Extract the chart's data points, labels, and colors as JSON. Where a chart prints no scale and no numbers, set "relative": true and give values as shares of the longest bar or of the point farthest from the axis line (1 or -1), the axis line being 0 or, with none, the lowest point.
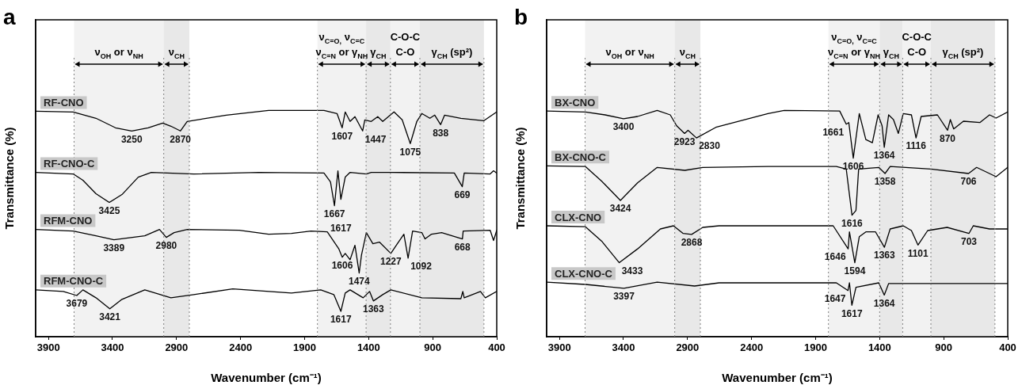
{
  "chart_data": [
    {
      "type": "line",
      "title": "a",
      "xlabel": "Wavenumber (cm⁻¹)",
      "ylabel": "Transmittance (%)",
      "relative": true,
      "xlim": [
        4000,
        400
      ],
      "xticks": [
        3900,
        3400,
        2900,
        2400,
        1900,
        1400,
        900,
        400
      ],
      "marker": "none",
      "grid": false,
      "legend": false,
      "series": [
        {
          "name": "RF-CNO",
          "color": "#000000",
          "x": [
            4000,
            3707,
            3529,
            3377,
            3250,
            3122,
            3008,
            2944,
            2870,
            2817,
            2512,
            2181,
            1749,
            1647,
            1607,
            1583,
            1545,
            1507,
            1447,
            1430,
            1380,
            1329,
            1290,
            1202,
            1138,
            1075,
            1024,
            985,
            922,
            884,
            838,
            807,
            680,
            502,
            400
          ],
          "values": [
            0.996,
            0.993,
            0.965,
            0.923,
            0.909,
            0.923,
            0.944,
            0.93,
            0.909,
            0.951,
            0.979,
            1.0,
            1.0,
            0.986,
            0.923,
            0.993,
            0.951,
            0.972,
            0.909,
            0.958,
            0.951,
            0.972,
            0.951,
            0.993,
            0.958,
            0.853,
            0.951,
            0.986,
            0.965,
            0.979,
            0.937,
            0.979,
            0.965,
            0.954,
            0.993
          ]
        },
        {
          "name": "RF-CNO-C",
          "color": "#000000",
          "x": [
            4000,
            3707,
            3631,
            3529,
            3425,
            3326,
            3199,
            3097,
            2766,
            2257,
            1749,
            1698,
            1667,
            1640,
            1617,
            1583,
            1545,
            1418,
            1380,
            1240,
            731,
            669,
            654,
            451,
            425,
            400
          ],
          "values": [
            0.726,
            0.719,
            0.691,
            0.632,
            0.593,
            0.628,
            0.705,
            0.726,
            0.719,
            0.726,
            0.723,
            0.684,
            0.579,
            0.733,
            0.607,
            0.705,
            0.726,
            0.719,
            0.726,
            0.726,
            0.723,
            0.663,
            0.723,
            0.719,
            0.733,
            0.723
          ]
        },
        {
          "name": "RFM-CNO",
          "color": "#000000",
          "x": [
            4000,
            3707,
            3529,
            3389,
            3148,
            3033,
            2980,
            2919,
            2817,
            2410,
            2181,
            2003,
            1850,
            1723,
            1634,
            1606,
            1583,
            1545,
            1507,
            1474,
            1456,
            1418,
            1367,
            1316,
            1227,
            1176,
            1125,
            1092,
            1057,
            985,
            960,
            909,
            830,
            668,
            662,
            451,
            425,
            400
          ],
          "values": [
            0.474,
            0.467,
            0.446,
            0.428,
            0.446,
            0.474,
            0.439,
            0.46,
            0.474,
            0.47,
            0.453,
            0.456,
            0.467,
            0.463,
            0.389,
            0.351,
            0.368,
            0.34,
            0.404,
            0.281,
            0.361,
            0.46,
            0.411,
            0.418,
            0.368,
            0.411,
            0.453,
            0.347,
            0.467,
            0.46,
            0.432,
            0.453,
            0.46,
            0.432,
            0.467,
            0.47,
            0.425,
            0.47
          ]
        },
        {
          "name": "RFM-CNO-C",
          "color": "#000000",
          "x": [
            4000,
            3784,
            3679,
            3631,
            3529,
            3421,
            3326,
            3148,
            2944,
            2766,
            2461,
            2003,
            1774,
            1672,
            1617,
            1583,
            1545,
            1443,
            1393,
            1363,
            1290,
            1227,
            985,
            680,
            665,
            654,
            527,
            489,
            400
          ],
          "values": [
            0.207,
            0.2,
            0.182,
            0.207,
            0.172,
            0.123,
            0.165,
            0.207,
            0.172,
            0.186,
            0.211,
            0.193,
            0.207,
            0.186,
            0.112,
            0.193,
            0.207,
            0.172,
            0.2,
            0.158,
            0.186,
            0.207,
            0.172,
            0.168,
            0.2,
            0.172,
            0.2,
            0.172,
            0.2
          ]
        }
      ],
      "ref_lines": [
        {
          "axis": "x",
          "value": 3700,
          "color": "#808080",
          "line_style": "dotted"
        },
        {
          "axis": "x",
          "value": 3000,
          "color": "#808080",
          "line_style": "dotted"
        },
        {
          "axis": "x",
          "value": 2800,
          "color": "#808080",
          "line_style": "dotted"
        },
        {
          "axis": "x",
          "value": 1800,
          "color": "#808080",
          "line_style": "dotted"
        },
        {
          "axis": "x",
          "value": 1420,
          "color": "#808080",
          "line_style": "dotted"
        },
        {
          "axis": "x",
          "value": 1230,
          "color": "#808080",
          "line_style": "dotted"
        },
        {
          "axis": "x",
          "value": 1000,
          "color": "#808080",
          "line_style": "dotted"
        },
        {
          "axis": "x",
          "value": 500,
          "color": "#808080",
          "line_style": "dotted"
        }
      ],
      "bands": [
        {
          "axis": "x",
          "from": 3700,
          "to": 3000,
          "label": "ν$_{OH}$ or ν$_{NH}$",
          "color": "#f2f2f2"
        },
        {
          "axis": "x",
          "from": 3000,
          "to": 2800,
          "label": "ν$_{CH}$",
          "color": "#e8e8e8"
        },
        {
          "axis": "x",
          "from": 1800,
          "to": 1420,
          "label": "ν$_{C=O,}$ ν$_{C=C}$\nν$_{C=N}$ or γ$_{NH}$",
          "color": "#f2f2f2"
        },
        {
          "axis": "x",
          "from": 1420,
          "to": 1230,
          "label": "γ$_{CH}$",
          "color": "#e8e8e8"
        },
        {
          "axis": "x",
          "from": 1230,
          "to": 1000,
          "label": "C-O-C\nC-O",
          "color": "#f2f2f2"
        },
        {
          "axis": "x",
          "from": 1000,
          "to": 500,
          "label": "γ$_{CH}$ (sp²)",
          "color": "#e8e8e8"
        }
      ],
      "annotations": [
        {
          "text": "3250",
          "x": 3250,
          "y": 0.909
        },
        {
          "text": "2870",
          "x": 2870,
          "y": 0.909
        },
        {
          "text": "1607",
          "x": 1607,
          "y": 0.923
        },
        {
          "text": "1447",
          "x": 1447,
          "y": 0.909
        },
        {
          "text": "1075",
          "x": 1075,
          "y": 0.853
        },
        {
          "text": "838",
          "x": 838,
          "y": 0.937
        },
        {
          "text": "3425",
          "x": 3425,
          "y": 0.593
        },
        {
          "text": "1667",
          "x": 1667,
          "y": 0.579
        },
        {
          "text": "1617",
          "x": 1617,
          "y": 0.607
        },
        {
          "text": "669",
          "x": 669,
          "y": 0.663
        },
        {
          "text": "3389",
          "x": 3389,
          "y": 0.428
        },
        {
          "text": "2980",
          "x": 2980,
          "y": 0.439
        },
        {
          "text": "1606",
          "x": 1606,
          "y": 0.351
        },
        {
          "text": "1474",
          "x": 1474,
          "y": 0.281
        },
        {
          "text": "1227",
          "x": 1227,
          "y": 0.368
        },
        {
          "text": "1092",
          "x": 1092,
          "y": 0.347
        },
        {
          "text": "668",
          "x": 668,
          "y": 0.432
        },
        {
          "text": "3679",
          "x": 3679,
          "y": 0.182
        },
        {
          "text": "3421",
          "x": 3421,
          "y": 0.123
        },
        {
          "text": "1617",
          "x": 1617,
          "y": 0.112
        },
        {
          "text": "1363",
          "x": 1363,
          "y": 0.158
        }
      ]
    },
    {
      "type": "line",
      "title": "b",
      "xlabel": "Wavenumber (cm⁻¹)",
      "ylabel": "Transmittance (%)",
      "relative": true,
      "xlim": [
        4000,
        400
      ],
      "xticks": [
        3900,
        3400,
        2900,
        2400,
        1900,
        1400,
        900,
        400
      ],
      "marker": "none",
      "grid": false,
      "legend": false,
      "series": [
        {
          "name": "BX-CNO",
          "color": "#000000",
          "x": [
            4000,
            3697,
            3544,
            3400,
            3290,
            3137,
            3035,
            2985,
            2923,
            2896,
            2830,
            2679,
            2272,
            2145,
            1712,
            1661,
            1641,
            1606,
            1559,
            1508,
            1457,
            1412,
            1381,
            1364,
            1330,
            1292,
            1254,
            1216,
            1152,
            1116,
            1076,
            949,
            870,
            848,
            822,
            746,
            618,
            542,
            491,
            400
          ],
          "values": [
            0.997,
            0.993,
            0.98,
            0.963,
            0.973,
            1.0,
            0.98,
            0.932,
            0.898,
            0.912,
            0.878,
            0.925,
            0.986,
            1.0,
            0.997,
            0.939,
            0.946,
            0.789,
            0.986,
            0.871,
            0.857,
            0.98,
            0.932,
            0.837,
            0.98,
            0.959,
            0.898,
            0.986,
            0.98,
            0.878,
            0.973,
            0.98,
            0.912,
            0.959,
            0.918,
            0.952,
            0.946,
            0.98,
            0.966,
            0.993
          ]
        },
        {
          "name": "BX-CNO-C",
          "color": "#000000",
          "x": [
            4000,
            3697,
            3570,
            3424,
            3290,
            3137,
            2921,
            2781,
            2272,
            1738,
            1661,
            1616,
            1585,
            1564,
            1407,
            1358,
            1318,
            1000,
            706,
            643,
            491,
            400
          ],
          "values": [
            0.755,
            0.752,
            0.687,
            0.602,
            0.68,
            0.748,
            0.735,
            0.748,
            0.752,
            0.752,
            0.741,
            0.537,
            0.558,
            0.741,
            0.748,
            0.721,
            0.752,
            0.741,
            0.721,
            0.748,
            0.707,
            0.748
          ]
        },
        {
          "name": "CLX-CNO",
          "color": "#000000",
          "x": [
            4000,
            3697,
            3570,
            3433,
            3290,
            3112,
            3010,
            2934,
            2868,
            2781,
            2654,
            1763,
            1646,
            1636,
            1594,
            1559,
            1508,
            1432,
            1363,
            1318,
            1216,
            1152,
            1101,
            1025,
            873,
            703,
            669,
            542,
            400
          ],
          "values": [
            0.49,
            0.486,
            0.422,
            0.327,
            0.388,
            0.476,
            0.49,
            0.456,
            0.452,
            0.483,
            0.49,
            0.49,
            0.388,
            0.463,
            0.327,
            0.442,
            0.463,
            0.463,
            0.395,
            0.476,
            0.49,
            0.469,
            0.405,
            0.469,
            0.483,
            0.456,
            0.49,
            0.476,
            0.476
          ]
        },
        {
          "name": "CLX-CNO-C",
          "color": "#000000",
          "x": [
            4000,
            3697,
            3397,
            3137,
            2845,
            2654,
            1738,
            1647,
            1636,
            1617,
            1585,
            1407,
            1364,
            1330,
            400
          ],
          "values": [
            0.241,
            0.231,
            0.214,
            0.241,
            0.224,
            0.238,
            0.238,
            0.204,
            0.238,
            0.139,
            0.218,
            0.238,
            0.184,
            0.235,
            0.235
          ]
        }
      ],
      "ref_lines": [
        {
          "axis": "x",
          "value": 3700,
          "color": "#808080",
          "line_style": "dotted"
        },
        {
          "axis": "x",
          "value": 3000,
          "color": "#808080",
          "line_style": "dotted"
        },
        {
          "axis": "x",
          "value": 2800,
          "color": "#808080",
          "line_style": "dotted"
        },
        {
          "axis": "x",
          "value": 1800,
          "color": "#808080",
          "line_style": "dotted"
        },
        {
          "axis": "x",
          "value": 1400,
          "color": "#808080",
          "line_style": "dotted"
        },
        {
          "axis": "x",
          "value": 1220,
          "color": "#808080",
          "line_style": "dotted"
        },
        {
          "axis": "x",
          "value": 1000,
          "color": "#808080",
          "line_style": "dotted"
        },
        {
          "axis": "x",
          "value": 500,
          "color": "#808080",
          "line_style": "dotted"
        }
      ],
      "bands": [
        {
          "axis": "x",
          "from": 3700,
          "to": 3000,
          "label": "ν$_{OH}$ or ν$_{NH}$",
          "color": "#f2f2f2"
        },
        {
          "axis": "x",
          "from": 3000,
          "to": 2800,
          "label": "ν$_{CH}$",
          "color": "#e8e8e8"
        },
        {
          "axis": "x",
          "from": 1800,
          "to": 1400,
          "label": "ν$_{C=O,}$ ν$_{C=C}$\nν$_{C=N}$ or γ$_{NH}$",
          "color": "#f2f2f2"
        },
        {
          "axis": "x",
          "from": 1400,
          "to": 1220,
          "label": "γ$_{CH}$",
          "color": "#e8e8e8"
        },
        {
          "axis": "x",
          "from": 1220,
          "to": 1000,
          "label": "C-O-C\nC-O",
          "color": "#f2f2f2"
        },
        {
          "axis": "x",
          "from": 1000,
          "to": 500,
          "label": "γ$_{CH}$ (sp²)",
          "color": "#e8e8e8"
        }
      ],
      "annotations": [
        {
          "text": "3400",
          "x": 3400,
          "y": 0.963
        },
        {
          "text": "2923",
          "x": 2923,
          "y": 0.898
        },
        {
          "text": "2830",
          "x": 2830,
          "y": 0.878
        },
        {
          "text": "1661",
          "x": 1661,
          "y": 0.939
        },
        {
          "text": "1606",
          "x": 1606,
          "y": 0.789
        },
        {
          "text": "1364",
          "x": 1364,
          "y": 0.837
        },
        {
          "text": "1116",
          "x": 1116,
          "y": 0.878
        },
        {
          "text": "870",
          "x": 870,
          "y": 0.912
        },
        {
          "text": "3424",
          "x": 3424,
          "y": 0.602
        },
        {
          "text": "1616",
          "x": 1616,
          "y": 0.537
        },
        {
          "text": "1358",
          "x": 1358,
          "y": 0.721
        },
        {
          "text": "706",
          "x": 706,
          "y": 0.721
        },
        {
          "text": "3433",
          "x": 3433,
          "y": 0.327
        },
        {
          "text": "2868",
          "x": 2868,
          "y": 0.452
        },
        {
          "text": "1646",
          "x": 1646,
          "y": 0.388
        },
        {
          "text": "1594",
          "x": 1594,
          "y": 0.327
        },
        {
          "text": "1363",
          "x": 1363,
          "y": 0.395
        },
        {
          "text": "1101",
          "x": 1101,
          "y": 0.405
        },
        {
          "text": "703",
          "x": 703,
          "y": 0.456
        },
        {
          "text": "3397",
          "x": 3397,
          "y": 0.214
        },
        {
          "text": "1647",
          "x": 1647,
          "y": 0.204
        },
        {
          "text": "1617",
          "x": 1617,
          "y": 0.139
        },
        {
          "text": "1364",
          "x": 1364,
          "y": 0.184
        }
      ]
    }
  ]
}
